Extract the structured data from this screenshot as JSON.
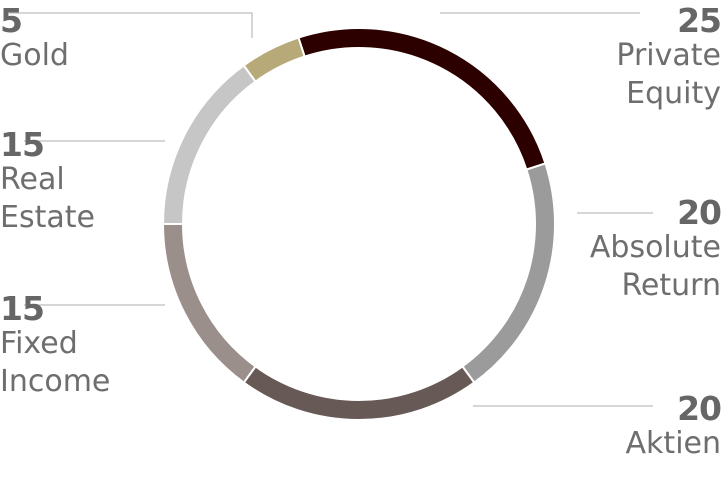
{
  "chart_data": {
    "type": "pie",
    "variant": "donut",
    "start_angle_deg": -18,
    "series": [
      {
        "name": "Private Equity",
        "lines": [
          "Private",
          "Equity"
        ],
        "value": 25,
        "color": "#2d0000",
        "value_label": "25"
      },
      {
        "name": "Absolute Return",
        "lines": [
          "Absolute",
          "Return"
        ],
        "value": 20,
        "color": "#9b9b9b",
        "value_label": "20"
      },
      {
        "name": "Aktien",
        "lines": [
          "Aktien"
        ],
        "value": 20,
        "color": "#675956",
        "value_label": "20"
      },
      {
        "name": "Fixed Income",
        "lines": [
          "Fixed",
          "Income"
        ],
        "value": 15,
        "color": "#9b8f8c",
        "value_label": "15"
      },
      {
        "name": "Real Estate",
        "lines": [
          "Real",
          "Estate"
        ],
        "value": 15,
        "color": "#c6c6c6",
        "value_label": "15"
      },
      {
        "name": "Gold",
        "lines": [
          "Gold"
        ],
        "value": 5,
        "color": "#b8aa78",
        "value_label": "5"
      }
    ]
  }
}
